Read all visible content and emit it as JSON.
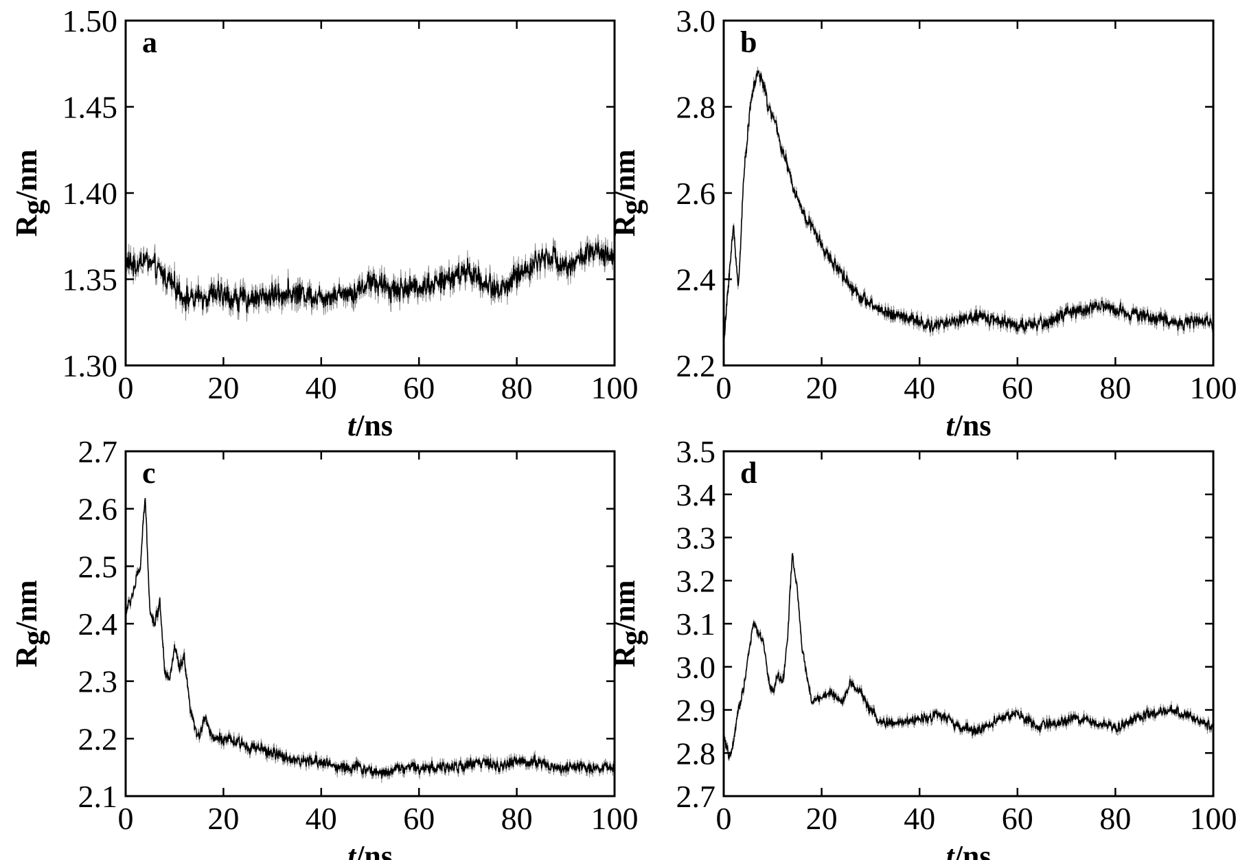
{
  "chart_data": [
    {
      "type": "line",
      "panel_label": "a",
      "xlabel_italic": "t",
      "xlabel_unit": "/ns",
      "ylabel_main": "R",
      "ylabel_sub": "g",
      "ylabel_unit": "/nm",
      "xlim": [
        0,
        100
      ],
      "ylim": [
        1.3,
        1.5
      ],
      "xticks": [
        0,
        20,
        40,
        60,
        80,
        100
      ],
      "xtick_labels": [
        "0",
        "20",
        "40",
        "60",
        "80",
        "100"
      ],
      "yticks": [
        1.3,
        1.35,
        1.4,
        1.45,
        1.5
      ],
      "ytick_labels": [
        "1.30",
        "1.35",
        "1.40",
        "1.45",
        "1.50"
      ],
      "grid": false,
      "series": [
        {
          "x": [
            0,
            2,
            4,
            6,
            8,
            10,
            12,
            14,
            16,
            18,
            20,
            24,
            28,
            32,
            36,
            40,
            44,
            48,
            50,
            52,
            56,
            60,
            64,
            68,
            70,
            72,
            76,
            78,
            80,
            84,
            86,
            88,
            90,
            92,
            94,
            96,
            98,
            100
          ],
          "y": [
            1.36,
            1.358,
            1.362,
            1.356,
            1.352,
            1.346,
            1.34,
            1.338,
            1.34,
            1.342,
            1.34,
            1.338,
            1.34,
            1.342,
            1.342,
            1.34,
            1.342,
            1.344,
            1.35,
            1.346,
            1.344,
            1.346,
            1.348,
            1.352,
            1.356,
            1.35,
            1.344,
            1.346,
            1.352,
            1.36,
            1.364,
            1.362,
            1.358,
            1.36,
            1.364,
            1.366,
            1.362,
            1.364
          ],
          "noise": 0.008
        }
      ]
    },
    {
      "type": "line",
      "panel_label": "b",
      "xlabel_italic": "t",
      "xlabel_unit": "/ns",
      "ylabel_main": "R",
      "ylabel_sub": "g",
      "ylabel_unit": "/nm",
      "xlim": [
        0,
        100
      ],
      "ylim": [
        2.2,
        3.0
      ],
      "xticks": [
        0,
        20,
        40,
        60,
        80,
        100
      ],
      "xtick_labels": [
        "0",
        "20",
        "40",
        "60",
        "80",
        "100"
      ],
      "yticks": [
        2.2,
        2.4,
        2.6,
        2.8,
        3.0
      ],
      "ytick_labels": [
        "2.2",
        "2.4",
        "2.6",
        "2.8",
        "3.0"
      ],
      "grid": false,
      "series": [
        {
          "x": [
            0,
            1,
            2,
            3,
            4,
            5,
            6,
            7,
            8,
            9,
            10,
            12,
            14,
            16,
            18,
            20,
            22,
            24,
            26,
            28,
            30,
            34,
            38,
            42,
            46,
            50,
            54,
            58,
            62,
            66,
            70,
            74,
            76,
            80,
            84,
            88,
            92,
            96,
            100
          ],
          "y": [
            2.24,
            2.4,
            2.52,
            2.38,
            2.62,
            2.76,
            2.84,
            2.88,
            2.86,
            2.8,
            2.78,
            2.7,
            2.62,
            2.56,
            2.52,
            2.48,
            2.44,
            2.42,
            2.38,
            2.36,
            2.34,
            2.32,
            2.31,
            2.29,
            2.3,
            2.31,
            2.31,
            2.3,
            2.29,
            2.3,
            2.32,
            2.33,
            2.34,
            2.33,
            2.32,
            2.31,
            2.3,
            2.3,
            2.3
          ],
          "noise": 0.018
        }
      ]
    },
    {
      "type": "line",
      "panel_label": "c",
      "xlabel_italic": "t",
      "xlabel_unit": "/ns",
      "ylabel_main": "R",
      "ylabel_sub": "g",
      "ylabel_unit": "/nm",
      "xlim": [
        0,
        100
      ],
      "ylim": [
        2.1,
        2.7
      ],
      "xticks": [
        0,
        20,
        40,
        60,
        80,
        100
      ],
      "xtick_labels": [
        "0",
        "20",
        "40",
        "60",
        "80",
        "100"
      ],
      "yticks": [
        2.1,
        2.2,
        2.3,
        2.4,
        2.5,
        2.6,
        2.7
      ],
      "ytick_labels": [
        "2.1",
        "2.2",
        "2.3",
        "2.4",
        "2.5",
        "2.6",
        "2.7"
      ],
      "grid": false,
      "series": [
        {
          "x": [
            0,
            1,
            2,
            3,
            4,
            5,
            6,
            7,
            8,
            9,
            10,
            11,
            12,
            13,
            14,
            15,
            16,
            17,
            18,
            20,
            24,
            28,
            32,
            36,
            40,
            44,
            48,
            52,
            56,
            60,
            64,
            68,
            72,
            76,
            80,
            84,
            88,
            92,
            96,
            100
          ],
          "y": [
            2.42,
            2.44,
            2.47,
            2.5,
            2.62,
            2.42,
            2.4,
            2.44,
            2.32,
            2.3,
            2.36,
            2.32,
            2.34,
            2.26,
            2.22,
            2.2,
            2.24,
            2.22,
            2.2,
            2.2,
            2.19,
            2.18,
            2.17,
            2.16,
            2.16,
            2.15,
            2.15,
            2.14,
            2.15,
            2.15,
            2.15,
            2.15,
            2.16,
            2.15,
            2.16,
            2.16,
            2.15,
            2.15,
            2.15,
            2.15
          ],
          "noise": 0.012
        }
      ]
    },
    {
      "type": "line",
      "panel_label": "d",
      "xlabel_italic": "t",
      "xlabel_unit": "/ns",
      "ylabel_main": "R",
      "ylabel_sub": "g",
      "ylabel_unit": "/nm",
      "xlim": [
        0,
        100
      ],
      "ylim": [
        2.7,
        3.5
      ],
      "xticks": [
        0,
        20,
        40,
        60,
        80,
        100
      ],
      "xtick_labels": [
        "0",
        "20",
        "40",
        "60",
        "80",
        "100"
      ],
      "yticks": [
        2.7,
        2.8,
        2.9,
        3.0,
        3.1,
        3.2,
        3.3,
        3.4,
        3.5
      ],
      "ytick_labels": [
        "2.7",
        "2.8",
        "2.9",
        "3.0",
        "3.1",
        "3.2",
        "3.3",
        "3.4",
        "3.5"
      ],
      "grid": false,
      "series": [
        {
          "x": [
            0,
            1,
            2,
            3,
            4,
            5,
            6,
            7,
            8,
            9,
            10,
            11,
            12,
            13,
            14,
            15,
            16,
            17,
            18,
            20,
            22,
            24,
            26,
            28,
            30,
            32,
            36,
            40,
            44,
            48,
            52,
            56,
            60,
            64,
            68,
            72,
            76,
            80,
            84,
            88,
            92,
            96,
            100
          ],
          "y": [
            2.84,
            2.79,
            2.82,
            2.9,
            2.95,
            3.02,
            3.1,
            3.08,
            3.06,
            2.98,
            2.94,
            2.98,
            2.96,
            3.06,
            3.26,
            3.18,
            3.04,
            2.98,
            2.92,
            2.93,
            2.94,
            2.92,
            2.96,
            2.94,
            2.9,
            2.87,
            2.87,
            2.88,
            2.89,
            2.86,
            2.85,
            2.88,
            2.89,
            2.86,
            2.87,
            2.88,
            2.87,
            2.86,
            2.88,
            2.89,
            2.9,
            2.88,
            2.86
          ],
          "noise": 0.014
        }
      ]
    }
  ]
}
